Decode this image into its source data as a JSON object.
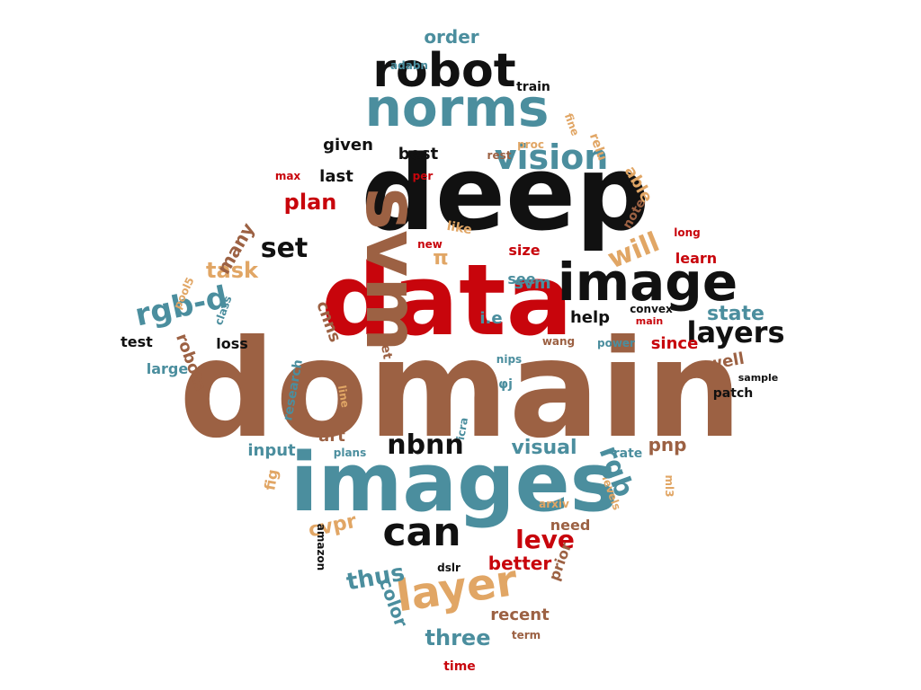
{
  "palette": {
    "brown": "#9c6143",
    "teal": "#4b8e9e",
    "red": "#c8050c",
    "black": "#111111",
    "tan": "#e1a665"
  },
  "words": [
    {
      "text": "domain",
      "color": "brown"
    },
    {
      "text": "data",
      "color": "red"
    },
    {
      "text": "deep",
      "color": "black"
    },
    {
      "text": "images",
      "color": "teal"
    },
    {
      "text": "image",
      "color": "black"
    },
    {
      "text": "norms",
      "color": "teal"
    },
    {
      "text": "robot",
      "color": "black"
    },
    {
      "text": "svm",
      "color": "brown"
    },
    {
      "text": "vision",
      "color": "teal"
    },
    {
      "text": "layers",
      "color": "black"
    },
    {
      "text": "layer",
      "color": "tan"
    },
    {
      "text": "can",
      "color": "black"
    },
    {
      "text": "rgb-d",
      "color": "teal"
    },
    {
      "text": "nbnn",
      "color": "black"
    },
    {
      "text": "will",
      "color": "tan"
    },
    {
      "text": "set",
      "color": "black"
    },
    {
      "text": "order",
      "color": "teal"
    },
    {
      "text": "given",
      "color": "black"
    },
    {
      "text": "best",
      "color": "black"
    },
    {
      "text": "plan",
      "color": "red"
    },
    {
      "text": "last",
      "color": "black"
    },
    {
      "text": "task",
      "color": "tan"
    },
    {
      "text": "many",
      "color": "brown"
    },
    {
      "text": "svm",
      "color": "teal"
    },
    {
      "text": "see",
      "color": "teal"
    },
    {
      "text": "size",
      "color": "red"
    },
    {
      "text": "help",
      "color": "black"
    },
    {
      "text": "state",
      "color": "teal"
    },
    {
      "text": "since",
      "color": "red"
    },
    {
      "text": "loss",
      "color": "black"
    },
    {
      "text": "test",
      "color": "black"
    },
    {
      "text": "large",
      "color": "teal"
    },
    {
      "text": "input",
      "color": "teal"
    },
    {
      "text": "art",
      "color": "brown"
    },
    {
      "text": "visual",
      "color": "teal"
    },
    {
      "text": "pnp",
      "color": "brown"
    },
    {
      "text": "leve",
      "color": "red"
    },
    {
      "text": "thus",
      "color": "teal"
    },
    {
      "text": "three",
      "color": "teal"
    },
    {
      "text": "recent",
      "color": "brown"
    },
    {
      "text": "time",
      "color": "red"
    },
    {
      "text": "better",
      "color": "red"
    },
    {
      "text": "need",
      "color": "brown"
    },
    {
      "text": "cvpr",
      "color": "tan"
    },
    {
      "text": "fig",
      "color": "tan"
    },
    {
      "text": "well",
      "color": "brown"
    },
    {
      "text": "patch",
      "color": "black"
    },
    {
      "text": "train",
      "color": "black"
    },
    {
      "text": "adabn",
      "color": "teal"
    },
    {
      "text": "rest",
      "color": "brown"
    },
    {
      "text": "proc",
      "color": "tan"
    },
    {
      "text": "fine",
      "color": "tan"
    },
    {
      "text": "per",
      "color": "red"
    },
    {
      "text": "max",
      "color": "red"
    },
    {
      "text": "new",
      "color": "red"
    },
    {
      "text": "π",
      "color": "tan"
    },
    {
      "text": "long",
      "color": "red"
    },
    {
      "text": "learn",
      "color": "red"
    },
    {
      "text": "i.e",
      "color": "teal"
    },
    {
      "text": "convex",
      "color": "black"
    },
    {
      "text": "main",
      "color": "red"
    },
    {
      "text": "wang",
      "color": "brown"
    },
    {
      "text": "power",
      "color": "teal"
    },
    {
      "text": "sample",
      "color": "black"
    },
    {
      "text": "nips",
      "color": "teal"
    },
    {
      "text": "line",
      "color": "tan"
    },
    {
      "text": "icra",
      "color": "teal"
    },
    {
      "text": "plans",
      "color": "teal"
    },
    {
      "text": "rate",
      "color": "teal"
    },
    {
      "text": "ml3",
      "color": "tan"
    },
    {
      "text": "arxiv",
      "color": "tan"
    },
    {
      "text": "levels",
      "color": "tan"
    },
    {
      "text": "dslr",
      "color": "black"
    },
    {
      "text": "term",
      "color": "brown"
    },
    {
      "text": "amazon",
      "color": "black"
    },
    {
      "text": "pool5",
      "color": "tan"
    },
    {
      "text": "class",
      "color": "teal"
    },
    {
      "text": "cnns",
      "color": "brown"
    },
    {
      "text": "note",
      "color": "brown"
    },
    {
      "text": "relu",
      "color": "tan"
    },
    {
      "text": "able",
      "color": "tan"
    },
    {
      "text": "like",
      "color": "tan"
    },
    {
      "text": "robots",
      "color": "brown"
    },
    {
      "text": "research",
      "color": "teal"
    },
    {
      "text": "let",
      "color": "brown"
    },
    {
      "text": "φj",
      "color": "teal"
    },
    {
      "text": "color",
      "color": "teal"
    },
    {
      "text": "prior",
      "color": "brown"
    },
    {
      "text": "rgb",
      "color": "teal"
    }
  ]
}
